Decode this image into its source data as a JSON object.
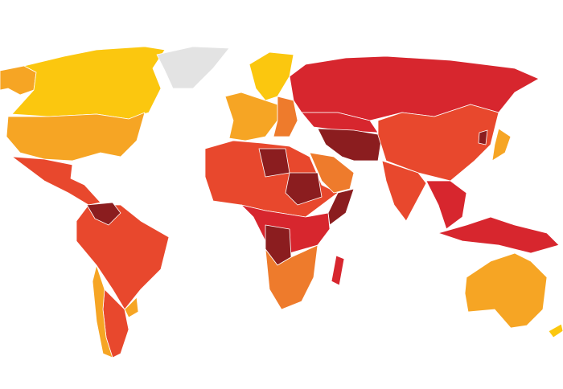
{
  "map": {
    "type": "choropleth-world-map",
    "palette": {
      "level1": "#fbc70f",
      "level2": "#f6a524",
      "level3": "#ee7b2c",
      "level4": "#e8482d",
      "level5": "#d7262e",
      "level6": "#8b1d1f",
      "no_data": "#e3e3e3"
    },
    "regions": [
      {
        "name": "alaska",
        "level": "level2"
      },
      {
        "name": "canada",
        "level": "level1"
      },
      {
        "name": "greenland",
        "level": "no_data"
      },
      {
        "name": "usa",
        "level": "level2"
      },
      {
        "name": "mexico-central-america",
        "level": "level4"
      },
      {
        "name": "south-america",
        "level": "level4"
      },
      {
        "name": "venezuela",
        "level": "level6"
      },
      {
        "name": "chile",
        "level": "level2"
      },
      {
        "name": "uruguay",
        "level": "level2"
      },
      {
        "name": "brazil",
        "level": "level4"
      },
      {
        "name": "scandinavia",
        "level": "level1"
      },
      {
        "name": "western-europe",
        "level": "level2"
      },
      {
        "name": "eastern-europe",
        "level": "level3"
      },
      {
        "name": "russia",
        "level": "level5"
      },
      {
        "name": "north-africa",
        "level": "level4"
      },
      {
        "name": "libya",
        "level": "level6"
      },
      {
        "name": "sudan",
        "level": "level6"
      },
      {
        "name": "somalia",
        "level": "level6"
      },
      {
        "name": "central-africa",
        "level": "level5"
      },
      {
        "name": "congo",
        "level": "level6"
      },
      {
        "name": "southern-africa",
        "level": "level3"
      },
      {
        "name": "madagascar",
        "level": "level5"
      },
      {
        "name": "saudi-arabia",
        "level": "level3"
      },
      {
        "name": "iran-afghanistan",
        "level": "level6"
      },
      {
        "name": "central-asia",
        "level": "level5"
      },
      {
        "name": "china",
        "level": "level4"
      },
      {
        "name": "india",
        "level": "level4"
      },
      {
        "name": "southeast-asia",
        "level": "level5"
      },
      {
        "name": "japan",
        "level": "level2"
      },
      {
        "name": "north-korea",
        "level": "level6"
      },
      {
        "name": "indonesia",
        "level": "level5"
      },
      {
        "name": "australia",
        "level": "level2"
      },
      {
        "name": "new-zealand",
        "level": "level1"
      }
    ]
  }
}
